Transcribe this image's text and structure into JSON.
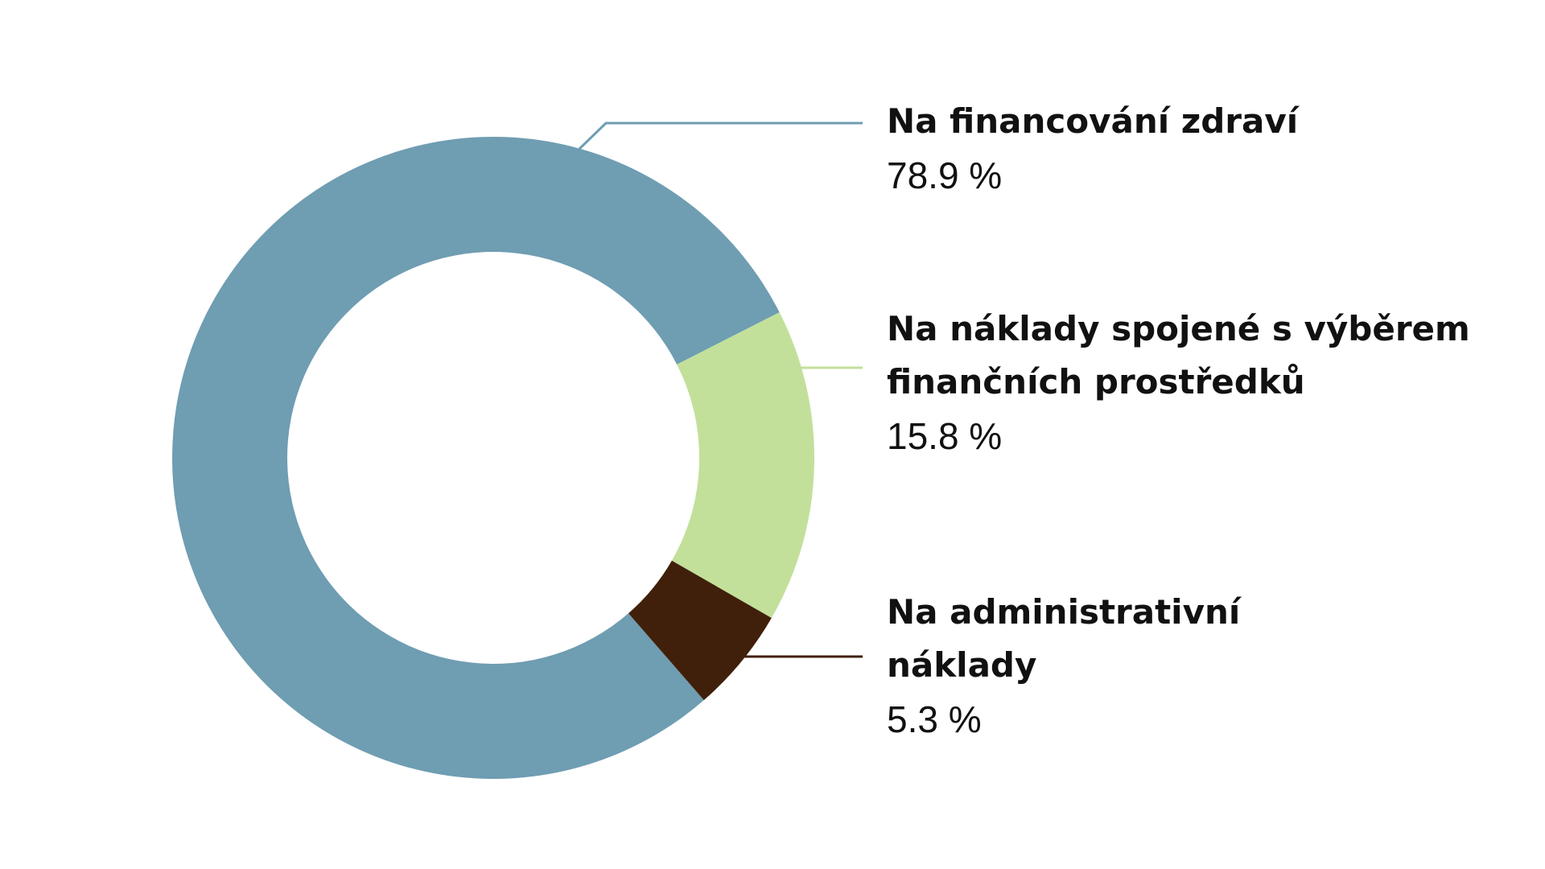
{
  "chart_data": {
    "type": "donut",
    "categories": [
      "Na financování zdraví",
      "Na náklady spojené s výběrem finančních prostředků",
      "Na administrativní náklady"
    ],
    "values": [
      78.9,
      15.8,
      5.3
    ],
    "value_labels": [
      "78.9 %",
      "15.8 %",
      "5.3 %"
    ],
    "colors": [
      "#6f9db2",
      "#c2e09a",
      "#40200a"
    ]
  }
}
